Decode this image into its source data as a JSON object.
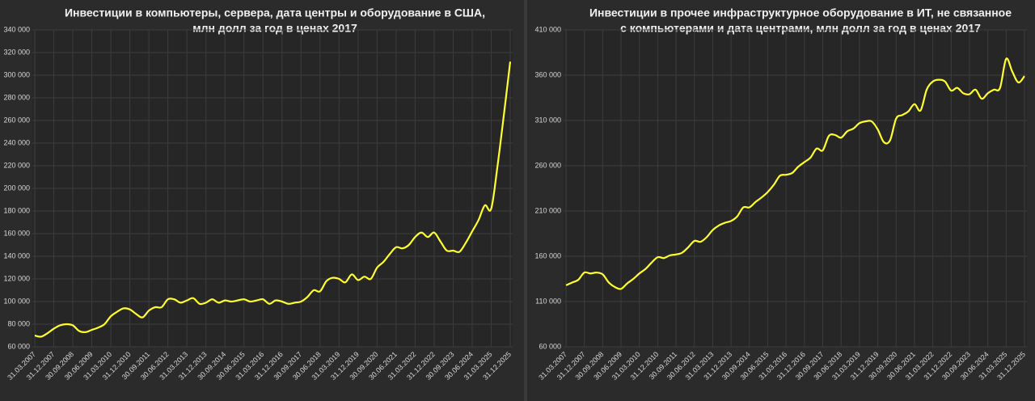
{
  "chart_data": [
    {
      "type": "line",
      "title": [
        "Инвестиции в компьютеры, сервера, дата центры и оборудование в США,",
        "млн долл за год в ценах 2017"
      ],
      "categories": [
        "31.03.2007",
        null,
        null,
        "31.12.2007",
        null,
        null,
        "30.09.2008",
        null,
        null,
        "30.06.2009",
        null,
        null,
        "31.03.2010",
        null,
        null,
        "31.12.2010",
        null,
        null,
        "30.09.2011",
        null,
        null,
        "30.06.2012",
        null,
        null,
        "31.03.2013",
        null,
        null,
        "31.12.2013",
        null,
        null,
        "30.09.2014",
        null,
        null,
        "30.06.2015",
        null,
        null,
        "31.03.2016",
        null,
        null,
        "31.12.2016",
        null,
        null,
        "30.09.2017",
        null,
        null,
        "30.06.2018",
        null,
        null,
        "31.03.2019",
        null,
        null,
        "31.12.2019",
        null,
        null,
        "30.09.2020",
        null,
        null,
        "30.06.2021",
        null,
        null,
        "31.03.2022",
        null,
        null,
        "31.12.2022",
        null,
        null,
        "30.09.2023",
        null,
        null,
        "30.06.2024",
        null,
        null,
        "31.03.2025",
        null,
        null,
        "31.12.2025"
      ],
      "values": [
        70000,
        69000,
        72000,
        76000,
        79000,
        80000,
        79000,
        74000,
        73000,
        75000,
        77000,
        80000,
        87000,
        91000,
        94000,
        93000,
        89000,
        86000,
        92000,
        95000,
        95000,
        102000,
        102000,
        99000,
        101000,
        103000,
        98000,
        99000,
        102000,
        99000,
        101000,
        100000,
        101000,
        102000,
        100000,
        101000,
        102000,
        98000,
        101000,
        100000,
        98000,
        99000,
        100000,
        104000,
        110000,
        109000,
        118000,
        121000,
        120000,
        117000,
        124000,
        119000,
        122000,
        120000,
        130000,
        135000,
        142000,
        148000,
        147000,
        150000,
        157000,
        161000,
        157000,
        161000,
        153000,
        145000,
        145000,
        144000,
        152000,
        162000,
        172000,
        185000,
        182000,
        220000,
        265000,
        312000
      ],
      "color": "#ffff33",
      "ylim": [
        60000,
        340000
      ],
      "yticks": [
        {
          "value": 60000,
          "label": "60 000"
        },
        {
          "value": 80000,
          "label": "80 000"
        },
        {
          "value": 100000,
          "label": "100 000"
        },
        {
          "value": 120000,
          "label": "120 000"
        },
        {
          "value": 140000,
          "label": "140 000"
        },
        {
          "value": 160000,
          "label": "160 000"
        },
        {
          "value": 180000,
          "label": "180 000"
        },
        {
          "value": 200000,
          "label": "200 000"
        },
        {
          "value": 220000,
          "label": "220 000"
        },
        {
          "value": 240000,
          "label": "240 000"
        },
        {
          "value": 260000,
          "label": "260 000"
        },
        {
          "value": 280000,
          "label": "280 000"
        },
        {
          "value": 300000,
          "label": "300 000"
        },
        {
          "value": 320000,
          "label": "320 000"
        },
        {
          "value": 340000,
          "label": "340 000"
        }
      ],
      "grid": true
    },
    {
      "type": "line",
      "title": [
        "Инвестиции в прочее инфраструктурное оборудование в ИТ, не связанное",
        "с компьютерами и дата центрами, млн долл за год в ценах 2017"
      ],
      "categories": [
        "31.03.2007",
        null,
        null,
        "31.12.2007",
        null,
        null,
        "30.09.2008",
        null,
        null,
        "30.06.2009",
        null,
        null,
        "31.03.2010",
        null,
        null,
        "31.12.2010",
        null,
        null,
        "30.09.2011",
        null,
        null,
        "30.06.2012",
        null,
        null,
        "31.03.2013",
        null,
        null,
        "31.12.2013",
        null,
        null,
        "30.09.2014",
        null,
        null,
        "30.06.2015",
        null,
        null,
        "31.03.2016",
        null,
        null,
        "31.12.2016",
        null,
        null,
        "30.09.2017",
        null,
        null,
        "30.06.2018",
        null,
        null,
        "31.03.2019",
        null,
        null,
        "31.12.2019",
        null,
        null,
        "30.09.2020",
        null,
        null,
        "30.06.2021",
        null,
        null,
        "31.03.2022",
        null,
        null,
        "31.12.2022",
        null,
        null,
        "30.09.2023",
        null,
        null,
        "30.06.2024",
        null,
        null,
        "31.03.2025",
        null,
        null,
        "31.12.2025"
      ],
      "values": [
        128000,
        131000,
        134000,
        142000,
        141000,
        142000,
        140000,
        131000,
        126000,
        124000,
        130000,
        135000,
        141000,
        146000,
        153000,
        159000,
        158000,
        161000,
        162000,
        164000,
        170000,
        177000,
        176000,
        181000,
        189000,
        194000,
        197000,
        199000,
        204000,
        214000,
        214000,
        220000,
        225000,
        231000,
        239000,
        249000,
        250000,
        252000,
        259000,
        264000,
        269000,
        279000,
        277000,
        293000,
        294000,
        291000,
        298000,
        301000,
        307000,
        309000,
        309000,
        300000,
        286000,
        288000,
        312000,
        316000,
        320000,
        328000,
        321000,
        344000,
        353000,
        355000,
        353000,
        343000,
        346000,
        340000,
        339000,
        344000,
        334000,
        340000,
        344000,
        346000,
        378000,
        364000,
        352000,
        359000
      ],
      "color": "#ffff33",
      "ylim": [
        60000,
        410000
      ],
      "yticks": [
        {
          "value": 60000,
          "label": "60 000"
        },
        {
          "value": 110000,
          "label": "110 000"
        },
        {
          "value": 160000,
          "label": "160 000"
        },
        {
          "value": 210000,
          "label": "210 000"
        },
        {
          "value": 260000,
          "label": "260 000"
        },
        {
          "value": 310000,
          "label": "310 000"
        },
        {
          "value": 360000,
          "label": "360 000"
        },
        {
          "value": 410000,
          "label": "410 000"
        }
      ],
      "grid": true
    }
  ]
}
